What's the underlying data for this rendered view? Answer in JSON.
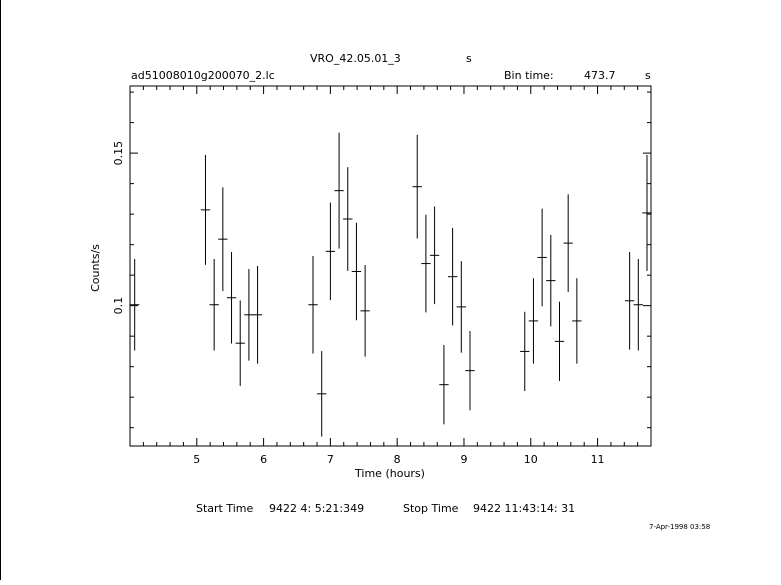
{
  "chart_data": {
    "type": "scatter",
    "title": "VRO_42.05.01_3",
    "title_units": "s",
    "file_label": "ad51008010g200070_2.lc",
    "bin_time_label": "Bin time:",
    "bin_time_value": "473.7",
    "bin_time_units": "s",
    "xlabel": "Time (hours)",
    "ylabel": "Counts/s",
    "xlim": [
      4.0,
      11.8
    ],
    "ylim": [
      0.054,
      0.172
    ],
    "x_ticks": [
      "5",
      "6",
      "7",
      "8",
      "9",
      "10",
      "11"
    ],
    "y_ticks": [
      "0.1",
      "0.15"
    ],
    "grid": false,
    "points": [
      {
        "x": 4.07,
        "y": 0.1003,
        "xerr": 0.07,
        "yerr": 0.015
      },
      {
        "x": 5.13,
        "y": 0.1314,
        "xerr": 0.07,
        "yerr": 0.018
      },
      {
        "x": 5.26,
        "y": 0.1003,
        "xerr": 0.07,
        "yerr": 0.015
      },
      {
        "x": 5.39,
        "y": 0.1218,
        "xerr": 0.07,
        "yerr": 0.017
      },
      {
        "x": 5.52,
        "y": 0.1026,
        "xerr": 0.07,
        "yerr": 0.015
      },
      {
        "x": 5.65,
        "y": 0.0877,
        "xerr": 0.07,
        "yerr": 0.014
      },
      {
        "x": 5.78,
        "y": 0.097,
        "xerr": 0.07,
        "yerr": 0.015
      },
      {
        "x": 5.91,
        "y": 0.097,
        "xerr": 0.07,
        "yerr": 0.016
      },
      {
        "x": 6.74,
        "y": 0.1003,
        "xerr": 0.07,
        "yerr": 0.016
      },
      {
        "x": 6.87,
        "y": 0.0711,
        "xerr": 0.07,
        "yerr": 0.014
      },
      {
        "x": 7.0,
        "y": 0.1178,
        "xerr": 0.07,
        "yerr": 0.016
      },
      {
        "x": 7.13,
        "y": 0.1377,
        "xerr": 0.07,
        "yerr": 0.019
      },
      {
        "x": 7.26,
        "y": 0.1284,
        "xerr": 0.07,
        "yerr": 0.017
      },
      {
        "x": 7.39,
        "y": 0.1112,
        "xerr": 0.07,
        "yerr": 0.016
      },
      {
        "x": 7.52,
        "y": 0.0983,
        "xerr": 0.07,
        "yerr": 0.015
      },
      {
        "x": 8.3,
        "y": 0.139,
        "xerr": 0.07,
        "yerr": 0.017
      },
      {
        "x": 8.43,
        "y": 0.1138,
        "xerr": 0.07,
        "yerr": 0.016
      },
      {
        "x": 8.56,
        "y": 0.1165,
        "xerr": 0.07,
        "yerr": 0.016
      },
      {
        "x": 8.7,
        "y": 0.0741,
        "xerr": 0.07,
        "yerr": 0.013
      },
      {
        "x": 8.83,
        "y": 0.1095,
        "xerr": 0.07,
        "yerr": 0.016
      },
      {
        "x": 8.96,
        "y": 0.0996,
        "xerr": 0.07,
        "yerr": 0.015
      },
      {
        "x": 9.09,
        "y": 0.0787,
        "xerr": 0.07,
        "yerr": 0.013
      },
      {
        "x": 9.91,
        "y": 0.085,
        "xerr": 0.07,
        "yerr": 0.013
      },
      {
        "x": 10.04,
        "y": 0.095,
        "xerr": 0.07,
        "yerr": 0.014
      },
      {
        "x": 10.17,
        "y": 0.1158,
        "xerr": 0.07,
        "yerr": 0.016
      },
      {
        "x": 10.3,
        "y": 0.1082,
        "xerr": 0.07,
        "yerr": 0.015
      },
      {
        "x": 10.43,
        "y": 0.0883,
        "xerr": 0.07,
        "yerr": 0.013
      },
      {
        "x": 10.56,
        "y": 0.1205,
        "xerr": 0.07,
        "yerr": 0.016
      },
      {
        "x": 10.69,
        "y": 0.095,
        "xerr": 0.07,
        "yerr": 0.014
      },
      {
        "x": 11.48,
        "y": 0.1016,
        "xerr": 0.07,
        "yerr": 0.016
      },
      {
        "x": 11.61,
        "y": 0.1003,
        "xerr": 0.07,
        "yerr": 0.015
      },
      {
        "x": 11.74,
        "y": 0.1304,
        "xerr": 0.07,
        "yerr": 0.019
      }
    ]
  },
  "footer": {
    "start_label": "Start Time",
    "start_value": "9422  4: 5:21:349",
    "stop_label": "Stop Time",
    "stop_value": "9422 11:43:14: 31",
    "timestamp": "7-Apr-1998 03:58"
  }
}
